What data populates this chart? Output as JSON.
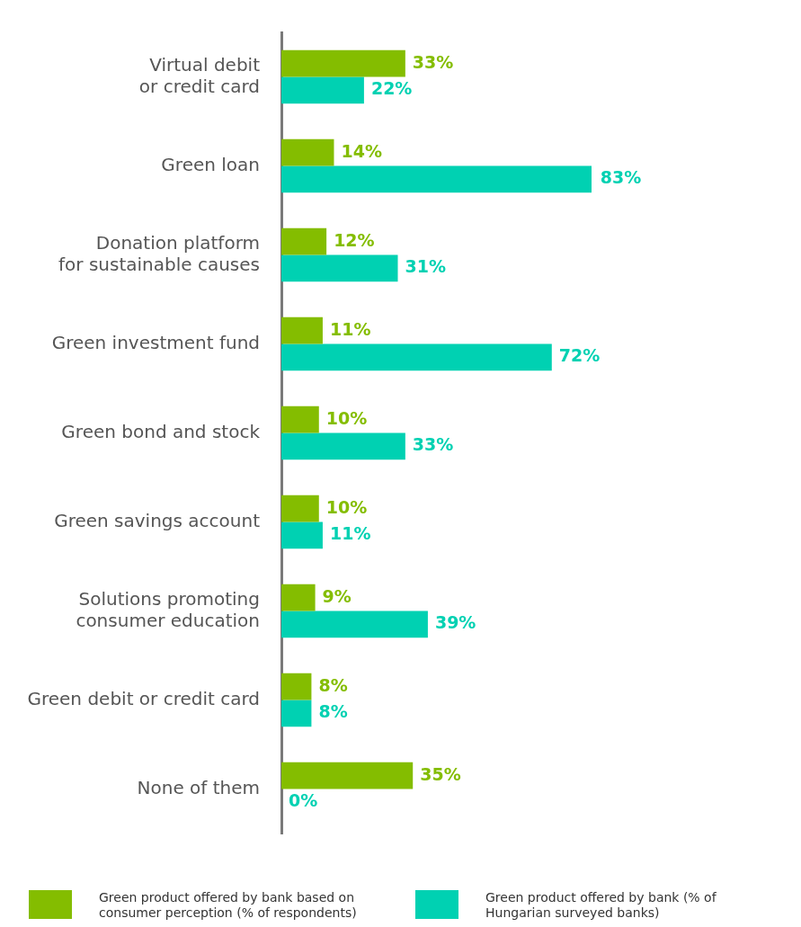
{
  "chart_data": {
    "type": "bar",
    "orientation": "horizontal",
    "categories": [
      "Virtual debit\nor credit card",
      "Green loan",
      "Donation platform\nfor sustainable causes",
      "Green investment fund",
      "Green bond and stock",
      "Green savings account",
      "Solutions promoting\nconsumer education",
      "Green debit or credit card",
      "None of them"
    ],
    "series": [
      {
        "name": "Green product offered by bank based on consumer perception (% of respondents)",
        "color": "#84bd00",
        "values": [
          33,
          14,
          12,
          11,
          10,
          10,
          9,
          8,
          35
        ],
        "value_labels": [
          "33%",
          "14%",
          "12%",
          "11%",
          "10%",
          "10%",
          "9%",
          "8%",
          "35%"
        ]
      },
      {
        "name": "Green product offered by bank (% of Hungarian surveyed banks)",
        "color": "#00d1b2",
        "values": [
          22,
          83,
          31,
          72,
          33,
          11,
          39,
          8,
          0
        ],
        "value_labels": [
          "22%",
          "83%",
          "31%",
          "72%",
          "33%",
          "11%",
          "39%",
          "8%",
          "0%"
        ]
      }
    ],
    "legend": "bottom"
  }
}
